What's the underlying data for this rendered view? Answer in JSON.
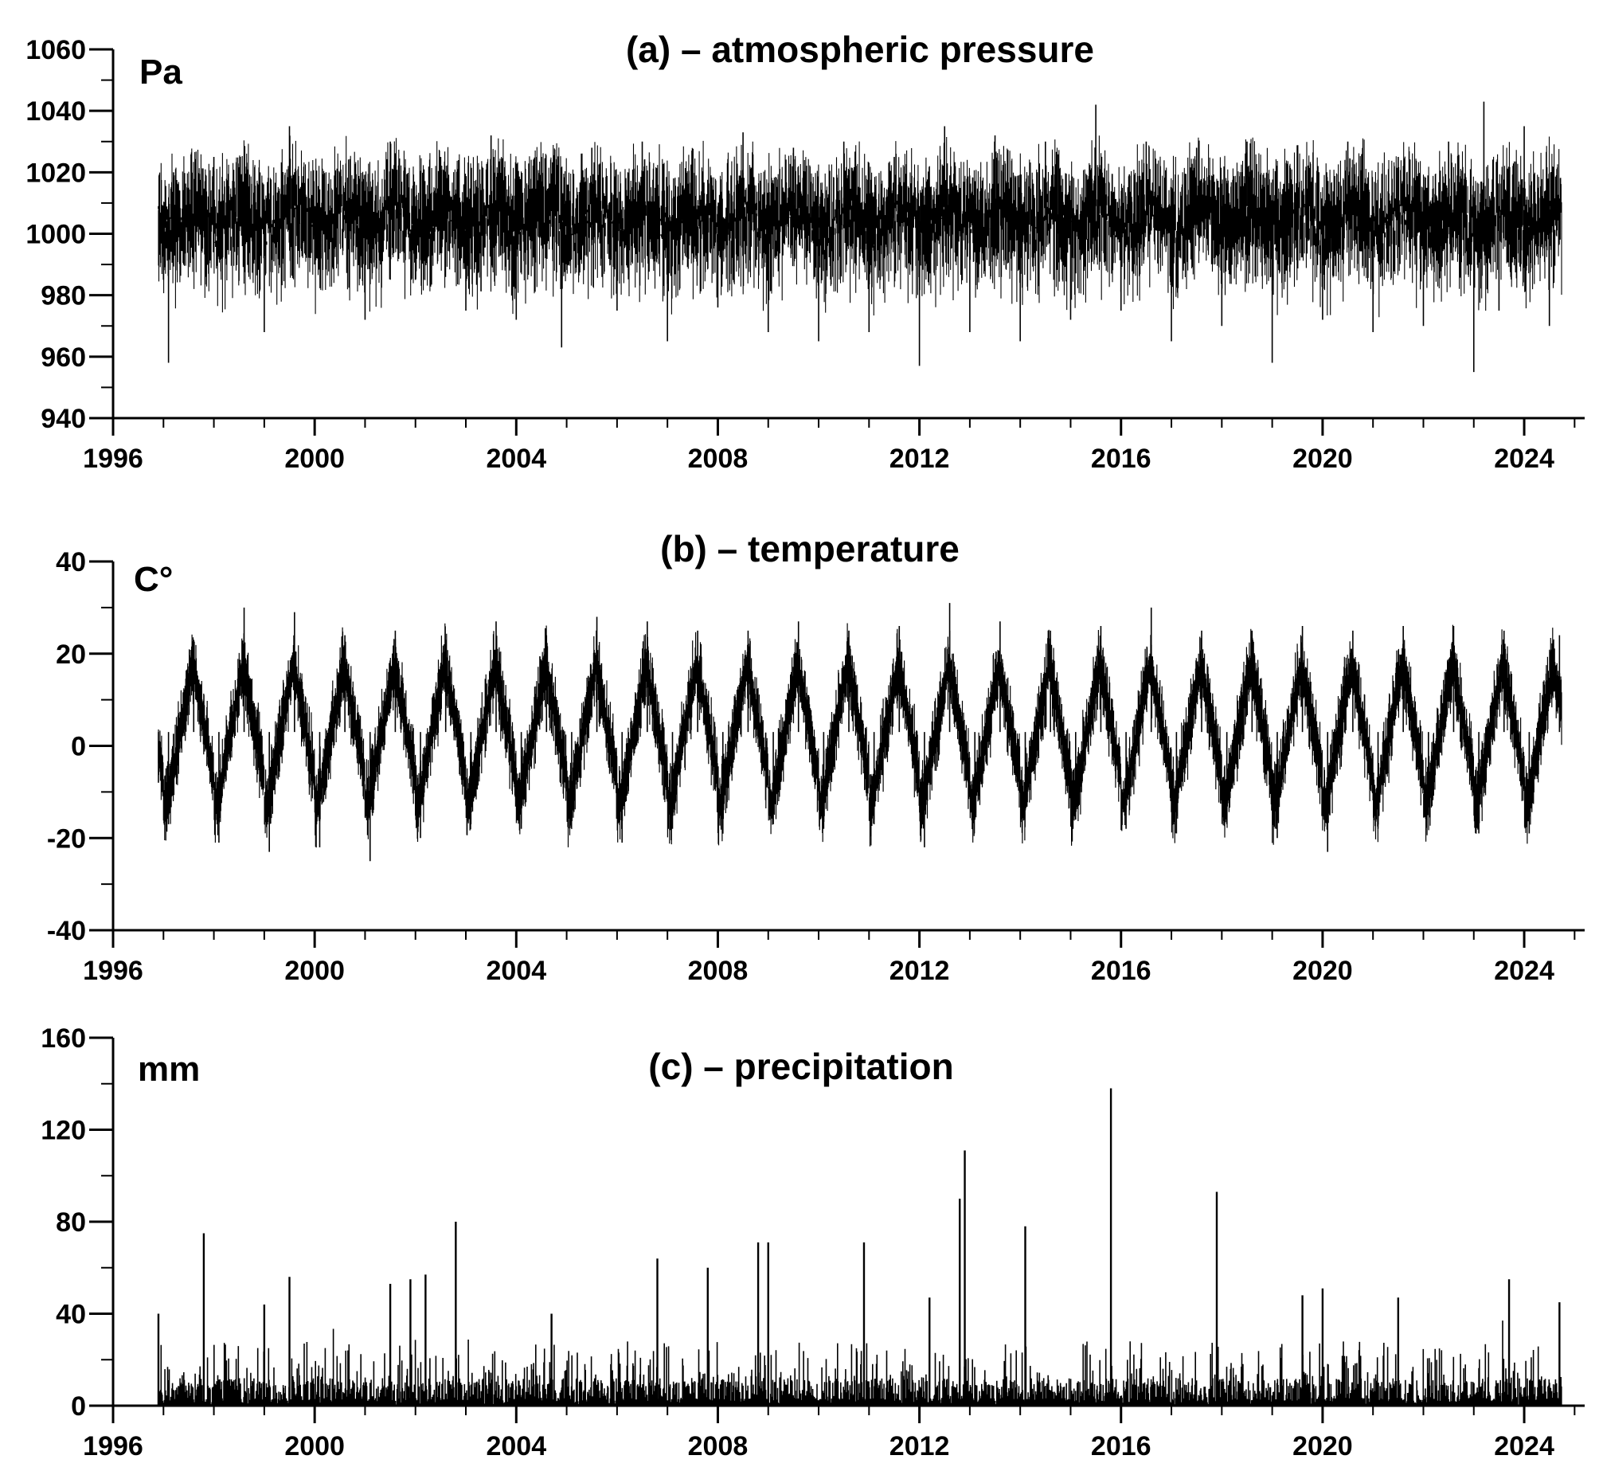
{
  "chart_data": [
    {
      "type": "line",
      "title": "(a) – atmospheric pressure",
      "ylabel": "Pa",
      "xlim": [
        1996,
        2025.2
      ],
      "ylim": [
        940,
        1060
      ],
      "yticks": [
        "940",
        "960",
        "980",
        "1000",
        "1020",
        "1040",
        "1060"
      ],
      "xticks": [
        "1996",
        "2000",
        "2004",
        "2008",
        "2012",
        "2016",
        "2020",
        "2024"
      ],
      "series": [
        {
          "x": [
            1996.9,
            1997.0,
            1997.1,
            1997.2,
            1997.5,
            1998.0,
            1998.5,
            1999.0,
            1999.5,
            2000.0,
            2000.5,
            2001.0,
            2001.5,
            2002.0,
            2002.5,
            2003.0,
            2003.5,
            2004.0,
            2004.5,
            2004.9,
            2005.5,
            2006.0,
            2006.5,
            2007.0,
            2007.5,
            2008.0,
            2008.5,
            2009.0,
            2009.5,
            2010.0,
            2010.5,
            2011.0,
            2011.5,
            2012.0,
            2012.5,
            2013.0,
            2013.5,
            2014.0,
            2014.5,
            2015.0,
            2015.5,
            2016.0,
            2016.5,
            2017.0,
            2017.5,
            2018.0,
            2018.5,
            2019.0,
            2019.5,
            2020.0,
            2020.5,
            2021.0,
            2021.5,
            2022.0,
            2022.5,
            2023.0,
            2023.2,
            2023.5,
            2024.0,
            2024.5,
            2024.7
          ],
          "y": [
            1008,
            985,
            958,
            1020,
            1015,
            1025,
            1005,
            968,
            1035,
            990,
            1020,
            972,
            1030,
            985,
            1025,
            975,
            1032,
            972,
            1025,
            963,
            1028,
            975,
            1030,
            965,
            1020,
            976,
            1033,
            968,
            1028,
            965,
            1030,
            968,
            1025,
            957,
            1035,
            968,
            1032,
            965,
            1030,
            972,
            1042,
            975,
            1030,
            965,
            1028,
            970,
            1030,
            958,
            1025,
            972,
            1030,
            968,
            1025,
            970,
            1030,
            955,
            1043,
            975,
            1035,
            970,
            1010
          ]
        }
      ]
    },
    {
      "type": "line",
      "title": "(b) – temperature",
      "ylabel": "C°",
      "xlim": [
        1996,
        2025.2
      ],
      "ylim": [
        -40,
        40
      ],
      "yticks": [
        "-40",
        "-20",
        "0",
        "20",
        "40"
      ],
      "xticks": [
        "1996",
        "2000",
        "2004",
        "2008",
        "2012",
        "2016",
        "2020",
        "2024"
      ],
      "series": [
        {
          "x": [
            1996.9,
            1997.1,
            1997.6,
            1998.1,
            1998.6,
            1999.1,
            1999.6,
            2000.1,
            2000.6,
            2001.1,
            2001.6,
            2002.1,
            2002.6,
            2003.1,
            2003.6,
            2004.1,
            2004.6,
            2005.1,
            2005.6,
            2006.1,
            2006.6,
            2007.1,
            2007.6,
            2008.1,
            2008.6,
            2009.1,
            2009.6,
            2010.1,
            2010.6,
            2011.1,
            2011.6,
            2012.1,
            2012.6,
            2013.1,
            2013.6,
            2014.1,
            2014.6,
            2015.1,
            2015.6,
            2016.1,
            2016.6,
            2017.1,
            2017.6,
            2018.1,
            2018.6,
            2019.1,
            2019.6,
            2020.1,
            2020.6,
            2021.1,
            2021.6,
            2022.1,
            2022.6,
            2023.1,
            2023.6,
            2024.1,
            2024.7
          ],
          "y": [
            -8,
            -17,
            23,
            -21,
            30,
            -23,
            29,
            -22,
            24,
            -25,
            25,
            -20,
            23,
            -17,
            27,
            -18,
            24,
            -15,
            28,
            -21,
            27,
            -18,
            25,
            -19,
            25,
            -17,
            27,
            -18,
            25,
            -17,
            26,
            -22,
            31,
            -16,
            27,
            -14,
            25,
            -16,
            26,
            -18,
            30,
            -19,
            25,
            -15,
            25,
            -20,
            26,
            -23,
            25,
            -18,
            26,
            -15,
            26,
            -19,
            25,
            -19,
            24
          ]
        }
      ]
    },
    {
      "type": "bar",
      "title": "(c) – precipitation",
      "ylabel": "mm",
      "xlim": [
        1996,
        2025.2
      ],
      "ylim": [
        0,
        160
      ],
      "yticks": [
        "0",
        "40",
        "80",
        "120",
        "160"
      ],
      "xticks": [
        "1996",
        "2000",
        "2004",
        "2008",
        "2012",
        "2016",
        "2020",
        "2024"
      ],
      "series": [
        {
          "x": [
            1996.9,
            1997.8,
            1999.0,
            1999.5,
            2001.5,
            2001.9,
            2002.2,
            2002.8,
            2004.7,
            2006.8,
            2007.8,
            2008.8,
            2009.0,
            2010.9,
            2012.2,
            2012.8,
            2012.9,
            2014.1,
            2015.8,
            2017.9,
            2019.6,
            2020.0,
            2021.5,
            2023.7,
            2024.7
          ],
          "y": [
            40,
            75,
            44,
            56,
            53,
            55,
            57,
            80,
            40,
            64,
            60,
            71,
            71,
            71,
            47,
            90,
            111,
            78,
            138,
            93,
            48,
            51,
            47,
            55,
            45
          ]
        }
      ]
    }
  ]
}
